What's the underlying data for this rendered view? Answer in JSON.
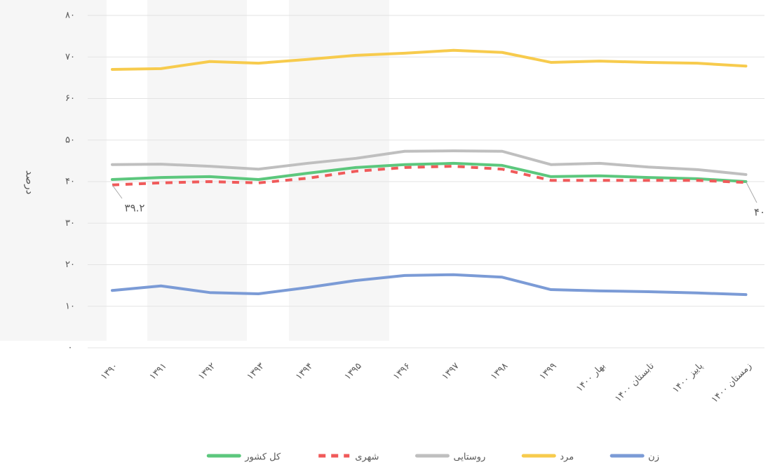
{
  "chart_data": {
    "type": "line",
    "y_label": "درصد",
    "categories": [
      "۱۳۹۰",
      "۱۳۹۱",
      "۱۳۹۲",
      "۱۳۹۳",
      "۱۳۹۴",
      "۱۳۹۵",
      "۱۳۹۶",
      "۱۳۹۷",
      "۱۳۹۸",
      "۱۳۹۹",
      "بهار ۱۴۰۰",
      "تابستان ۱۴۰۰",
      "پاییز ۱۴۰۰",
      "زمستان ۱۴۰۰"
    ],
    "series": [
      {
        "name": "زن",
        "color": "#7b9bd6",
        "style": "solid",
        "values": [
          13.8,
          14.9,
          13.3,
          13.0,
          14.5,
          16.2,
          17.4,
          17.6,
          17.0,
          14.0,
          13.7,
          13.5,
          13.2,
          12.8
        ]
      },
      {
        "name": "مرد",
        "color": "#f7cb4d",
        "style": "solid",
        "values": [
          67.0,
          67.2,
          68.9,
          68.5,
          69.4,
          70.4,
          70.9,
          71.6,
          71.1,
          68.7,
          69.0,
          68.7,
          68.5,
          67.8
        ]
      },
      {
        "name": "روستایی",
        "color": "#bfbfbf",
        "style": "solid",
        "values": [
          44.1,
          44.2,
          43.7,
          43.0,
          44.4,
          45.6,
          47.3,
          47.4,
          47.3,
          44.1,
          44.4,
          43.5,
          42.9,
          41.7
        ]
      },
      {
        "name": "شهری",
        "color": "#f05a5a",
        "style": "dashed",
        "values": [
          39.2,
          39.7,
          40.0,
          39.7,
          40.8,
          42.5,
          43.4,
          43.7,
          43.0,
          40.3,
          40.3,
          40.3,
          40.3,
          39.8
        ]
      },
      {
        "name": "کل کشور",
        "color": "#5cc77d",
        "style": "solid",
        "values": [
          40.5,
          41.0,
          41.2,
          40.5,
          42.0,
          43.4,
          44.1,
          44.4,
          43.9,
          41.2,
          41.4,
          41.0,
          40.7,
          40.0
        ]
      }
    ],
    "annotations": [
      {
        "text": "۳۹.۲",
        "series": 3,
        "index": 0
      },
      {
        "text": "۴۰",
        "series": 4,
        "index": 13
      }
    ],
    "ylim": [
      0,
      80
    ],
    "yticks": [
      {
        "value": 0,
        "label": "۰"
      },
      {
        "value": 10,
        "label": "۱۰"
      },
      {
        "value": 20,
        "label": "۲۰"
      },
      {
        "value": 30,
        "label": "۳۰"
      },
      {
        "value": 40,
        "label": "۴۰"
      },
      {
        "value": 50,
        "label": "۵۰"
      },
      {
        "value": 60,
        "label": "۶۰"
      },
      {
        "value": 70,
        "label": "۷۰"
      },
      {
        "value": 80,
        "label": "۸۰"
      }
    ],
    "grid": true,
    "legend": "bottom"
  }
}
